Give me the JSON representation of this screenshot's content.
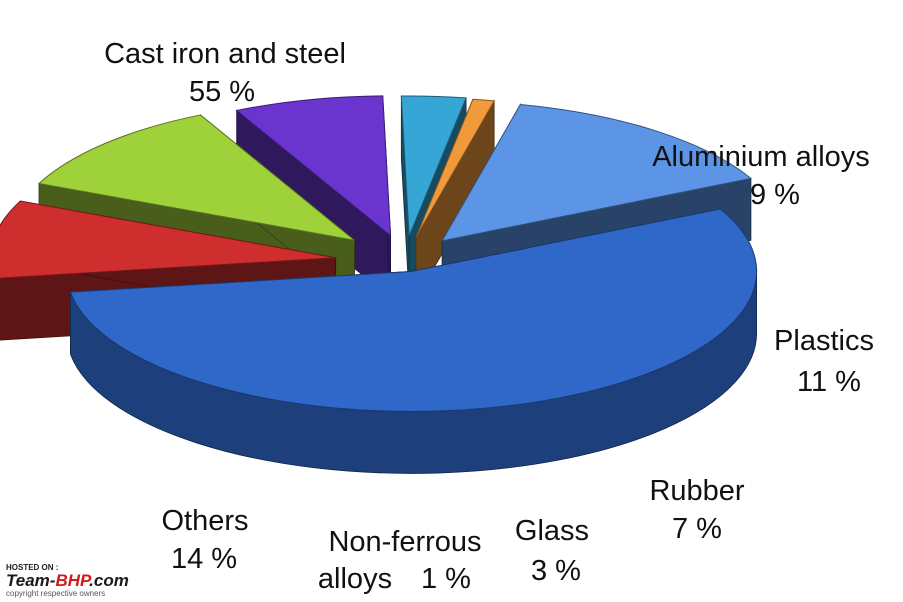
{
  "chart_data": {
    "type": "pie",
    "title": "",
    "slices": [
      {
        "label": "Cast iron and steel",
        "value": 55,
        "value_label": "55 %",
        "color": "#2f68c8"
      },
      {
        "label": "Aluminium alloys",
        "value": 9,
        "value_label": "9 %",
        "color": "#cf2e2e"
      },
      {
        "label": "Plastics",
        "value": 11,
        "value_label": "11 %",
        "color": "#9fd13a"
      },
      {
        "label": "Rubber",
        "value": 7,
        "value_label": "7 %",
        "color": "#6a35cf"
      },
      {
        "label": "Glass",
        "value": 3,
        "value_label": "3 %",
        "color": "#36a6d6"
      },
      {
        "label": "Non-ferrous",
        "label_line2": "alloys",
        "value": 1,
        "value_label": "1 %",
        "color": "#f09a3c"
      },
      {
        "label": "Others",
        "value": 14,
        "value_label": "14 %",
        "color": "#5c95e6"
      }
    ]
  },
  "watermark": {
    "hosted_on": "HOSTED ON :",
    "brand_a": "Team-",
    "brand_b": "BHP",
    "brand_c": ".com",
    "copyright": "copyright respective owners",
    "colors": {
      "a": "#1a1a1a",
      "b": "#d11a1a"
    }
  }
}
